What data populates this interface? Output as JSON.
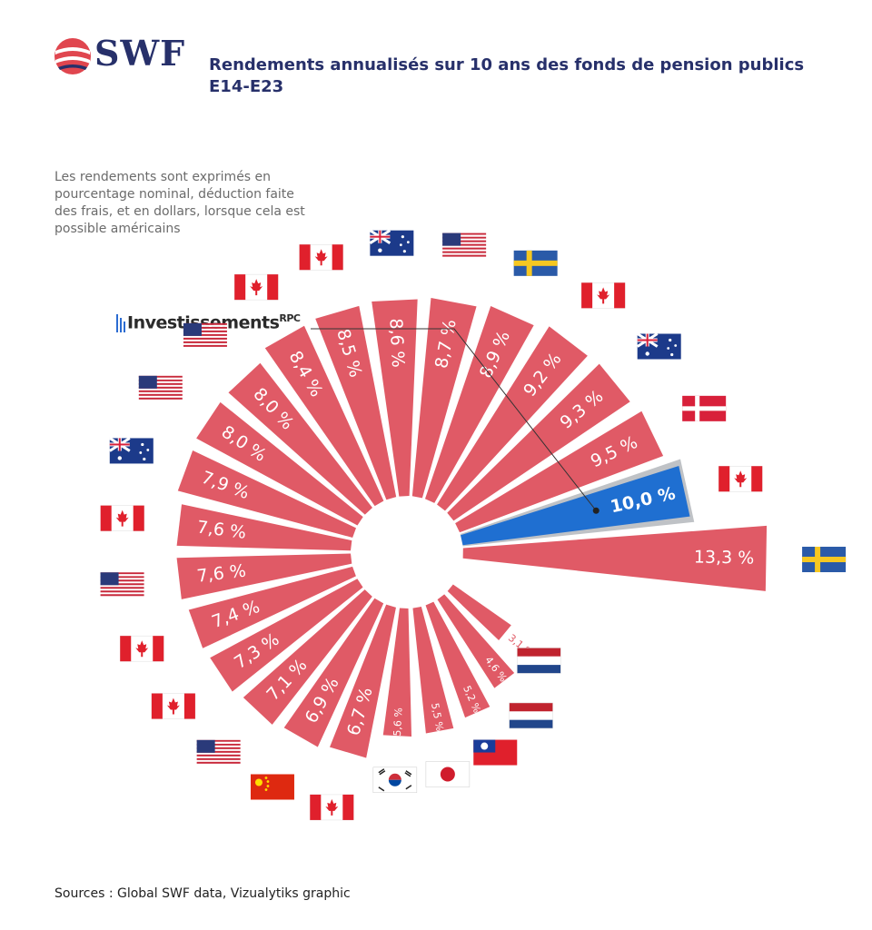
{
  "header": {
    "logo_text": "SWF",
    "title_line1": "Rendements annualisés sur 10 ans des fonds de pension publics",
    "title_line2": "E14-E23"
  },
  "note": "Les rendements sont exprimés en pourcentage nominal, déduction faite des frais, et en dollars, lorsque cela est possible américains",
  "highlight": {
    "name": "Investissements",
    "sup": "RPC"
  },
  "source": "Sources : Global SWF data, Vizualytiks graphic",
  "colors": {
    "bar": "#e05a66",
    "highlight": "#1f6fd1",
    "title": "#27306a"
  },
  "chart_data": {
    "type": "bar",
    "layout": "radial",
    "unit": "%",
    "values": [
      13.3,
      10.0,
      9.5,
      9.3,
      9.2,
      8.9,
      8.7,
      8.6,
      8.5,
      8.4,
      8.0,
      8.0,
      7.9,
      7.6,
      7.6,
      7.4,
      7.3,
      7.1,
      6.9,
      6.7,
      5.6,
      5.5,
      5.2,
      4.6,
      3.1
    ],
    "labels": [
      "13,3 %",
      "10,0 %",
      "9,5 %",
      "9,3 %",
      "9,2 %",
      "8,9 %",
      "8,7 %",
      "8,6 %",
      "8,5 %",
      "8,4 %",
      "8,0 %",
      "8,0 %",
      "7,9 %",
      "7,6 %",
      "7,6 %",
      "7,4 %",
      "7,3 %",
      "7,1 %",
      "6,9 %",
      "6,7 %",
      "5,6 %",
      "5,5 %",
      "5,2 %",
      "4,6 %",
      "3,1 %"
    ],
    "flags": [
      "sweden",
      "canada",
      "denmark",
      "australia",
      "canada",
      "sweden",
      "usa",
      "australia",
      "canada",
      "canada",
      "usa",
      "usa",
      "australia",
      "canada",
      "usa",
      "canada",
      "canada",
      "usa",
      "china",
      "canada",
      "south-korea",
      "japan",
      "taiwan",
      "netherlands",
      "netherlands"
    ],
    "highlighted_index": 1
  }
}
